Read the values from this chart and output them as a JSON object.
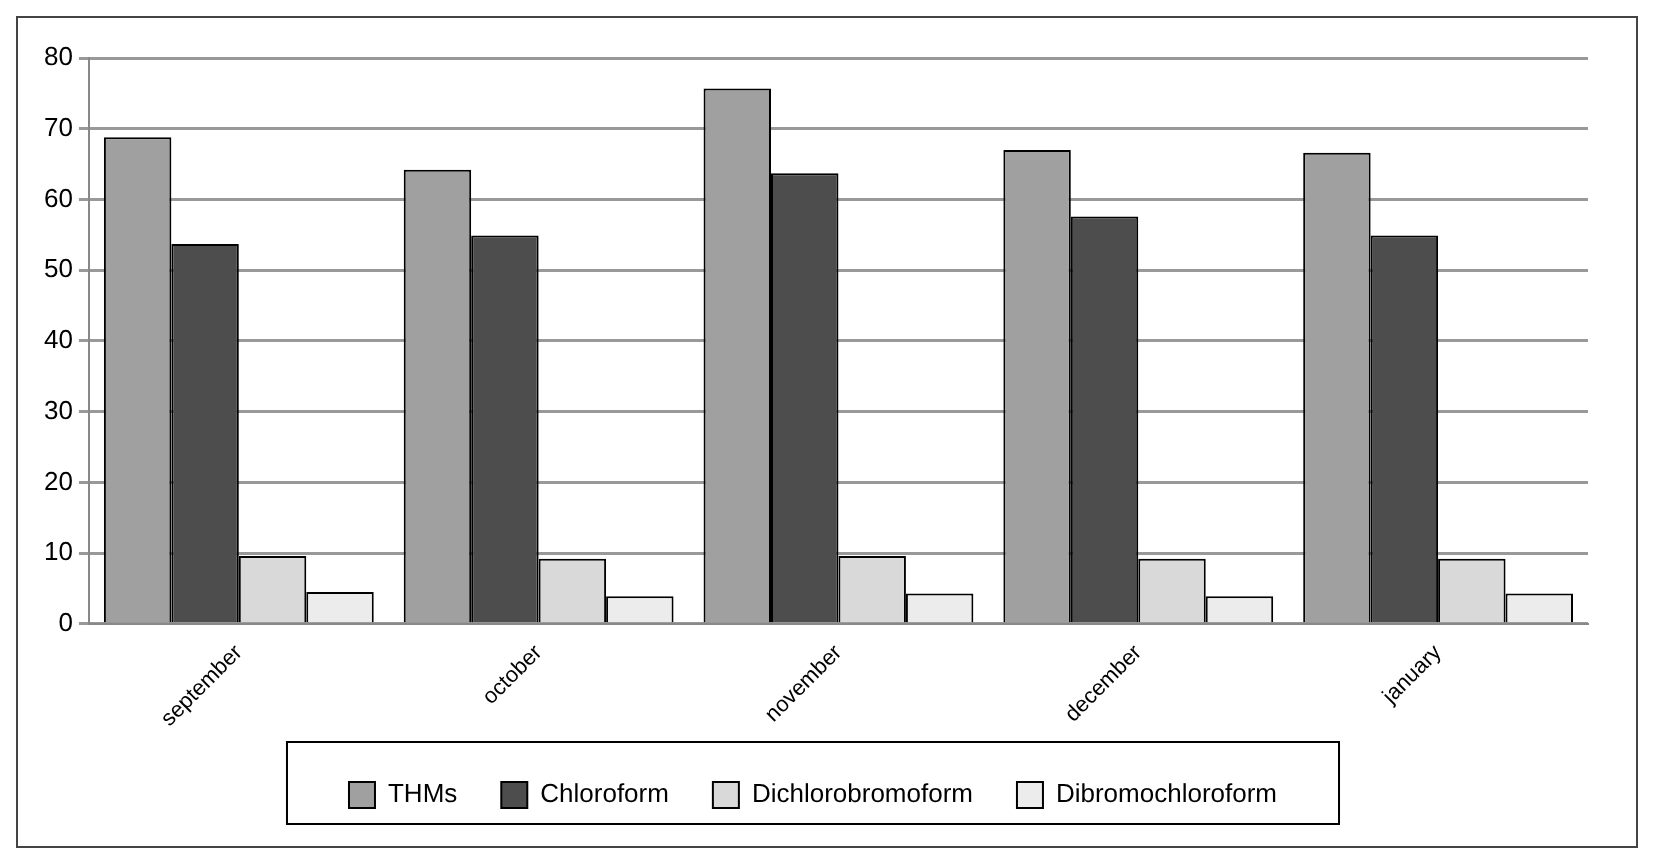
{
  "chart_data": {
    "type": "bar",
    "categories": [
      "september",
      "october",
      "november",
      "december",
      "january"
    ],
    "series": [
      {
        "name": "THMs",
        "color": "#a0a0a0",
        "values": [
          68.8,
          64.2,
          75.7,
          67.0,
          66.6
        ]
      },
      {
        "name": "Chloroform",
        "color": "#4d4d4d",
        "values": [
          53.7,
          54.9,
          63.7,
          57.6,
          54.9
        ]
      },
      {
        "name": "Dichlorobromoform",
        "color": "#d9d9d9",
        "values": [
          9.6,
          9.2,
          9.6,
          9.2,
          9.2
        ]
      },
      {
        "name": "Dibromochloroform",
        "color": "#ececec",
        "values": [
          4.5,
          3.9,
          4.3,
          3.9,
          4.3
        ]
      }
    ],
    "ylim": [
      0,
      80
    ],
    "yticks": [
      0,
      10,
      20,
      30,
      40,
      50,
      60,
      70,
      80
    ],
    "grid": "y",
    "legend": "bottom"
  }
}
